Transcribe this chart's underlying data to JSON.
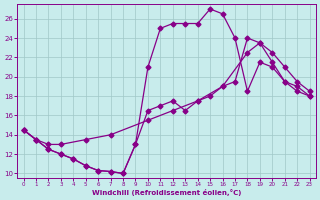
{
  "bg_color": "#c8ecec",
  "grid_color": "#a0c8c8",
  "line_color": "#880088",
  "xlabel": "Windchill (Refroidissement éolien,°C)",
  "xlim": [
    -0.5,
    23.5
  ],
  "ylim": [
    9.5,
    27.5
  ],
  "yticks": [
    10,
    12,
    14,
    16,
    18,
    20,
    22,
    24,
    26
  ],
  "xticks": [
    0,
    1,
    2,
    3,
    4,
    5,
    6,
    7,
    8,
    9,
    10,
    11,
    12,
    13,
    14,
    15,
    16,
    17,
    18,
    19,
    20,
    21,
    22,
    23
  ],
  "line1_x": [
    0,
    1,
    2,
    3,
    4,
    5,
    6,
    7,
    8,
    9,
    10,
    11,
    12,
    13,
    14,
    15,
    16,
    17,
    18,
    19,
    20,
    21,
    22,
    23
  ],
  "line1_y": [
    14.5,
    13.5,
    12.5,
    12.0,
    11.5,
    10.8,
    10.3,
    10.2,
    10.0,
    13.0,
    21.0,
    25.0,
    25.5,
    25.5,
    25.5,
    27.0,
    26.5,
    24.0,
    18.5,
    21.5,
    21.0,
    19.5,
    19.0,
    18.0
  ],
  "line2_x": [
    0,
    1,
    2,
    3,
    4,
    5,
    6,
    7,
    8,
    9,
    10,
    11,
    12,
    13,
    14,
    15,
    16,
    17,
    18,
    19,
    20,
    21,
    22,
    23
  ],
  "line2_y": [
    14.5,
    13.5,
    12.5,
    12.0,
    11.5,
    10.8,
    10.3,
    10.2,
    10.0,
    13.0,
    16.5,
    17.0,
    17.5,
    16.5,
    17.5,
    18.0,
    19.0,
    19.5,
    24.0,
    23.5,
    21.5,
    19.5,
    18.5,
    18.0
  ],
  "line3_x": [
    0,
    1,
    2,
    3,
    5,
    7,
    10,
    12,
    14,
    16,
    18,
    19,
    20,
    21,
    22,
    23
  ],
  "line3_y": [
    14.5,
    13.5,
    13.0,
    13.0,
    13.5,
    14.0,
    15.5,
    16.5,
    17.5,
    19.0,
    22.5,
    23.5,
    22.5,
    21.0,
    19.5,
    18.5
  ]
}
